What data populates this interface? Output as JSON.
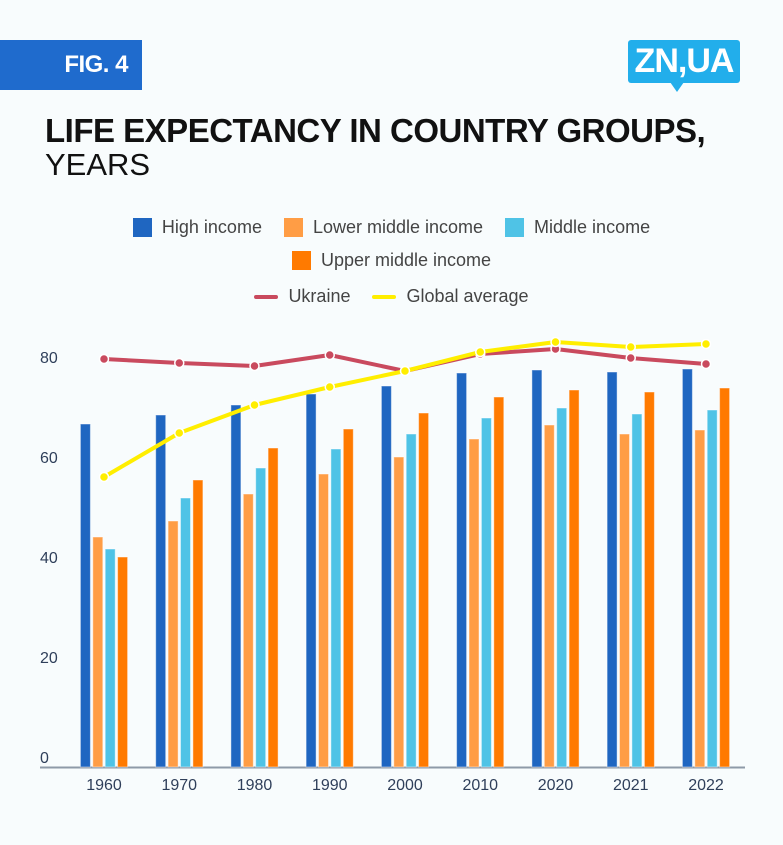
{
  "header": {
    "figure_label": "FIG. 4",
    "logo_text": "ZN,UA",
    "title": "LIFE EXPECTANCY IN COUNTRY GROUPS,",
    "subtitle": "YEARS"
  },
  "colors": {
    "high_income": "#1F66C1",
    "lower_middle_income": "#FF9D45",
    "middle_income": "#4FC3E6",
    "upper_middle_income": "#FF7A00",
    "ukraine": "#C94A5E",
    "global_average": "#FFEE00",
    "badge": "#1F6BCD",
    "logo": "#22AEEB"
  },
  "legend": {
    "row1": [
      "High income",
      "Lower middle income",
      "Middle income"
    ],
    "row2": [
      "Upper middle income"
    ],
    "row3": [
      "Ukraine",
      "Global average"
    ]
  },
  "chart_data": {
    "type": "bar",
    "title": "LIFE EXPECTANCY IN COUNTRY GROUPS, YEARS",
    "xlabel": "",
    "ylabel": "",
    "ylim": [
      0,
      80
    ],
    "yticks": [
      0,
      20,
      40,
      60,
      80
    ],
    "grid": false,
    "legend_position": "top",
    "categories": [
      "1960",
      "1970",
      "1980",
      "1990",
      "2000",
      "2010",
      "2020",
      "2021",
      "2022"
    ],
    "series": [
      {
        "name": "High income",
        "kind": "bar",
        "color_key": "high_income",
        "values": [
          66.6,
          68.4,
          70.4,
          72.6,
          74.2,
          76.8,
          77.4,
          77.0,
          77.6
        ]
      },
      {
        "name": "Lower middle income",
        "kind": "bar",
        "color_key": "lower_middle_income",
        "values": [
          44.0,
          47.2,
          52.6,
          56.6,
          60.0,
          63.6,
          66.4,
          64.6,
          65.4
        ]
      },
      {
        "name": "Middle income",
        "kind": "bar",
        "color_key": "middle_income",
        "values": [
          41.6,
          51.8,
          57.8,
          61.6,
          64.6,
          67.8,
          69.8,
          68.6,
          69.4
        ]
      },
      {
        "name": "Upper middle income",
        "kind": "bar",
        "color_key": "upper_middle_income",
        "values": [
          40.0,
          55.4,
          61.8,
          65.6,
          68.8,
          72.0,
          73.4,
          73.0,
          73.8
        ]
      },
      {
        "name": "Ukraine",
        "kind": "line",
        "color_key": "ukraine",
        "values": [
          79.6,
          78.8,
          78.2,
          80.4,
          77.2,
          80.6,
          81.6,
          79.8,
          78.6
        ]
      },
      {
        "name": "Global average",
        "kind": "line",
        "color_key": "global_average",
        "values": [
          56.0,
          64.8,
          70.4,
          74.0,
          77.2,
          81.0,
          83.0,
          82.0,
          82.6
        ]
      }
    ]
  }
}
